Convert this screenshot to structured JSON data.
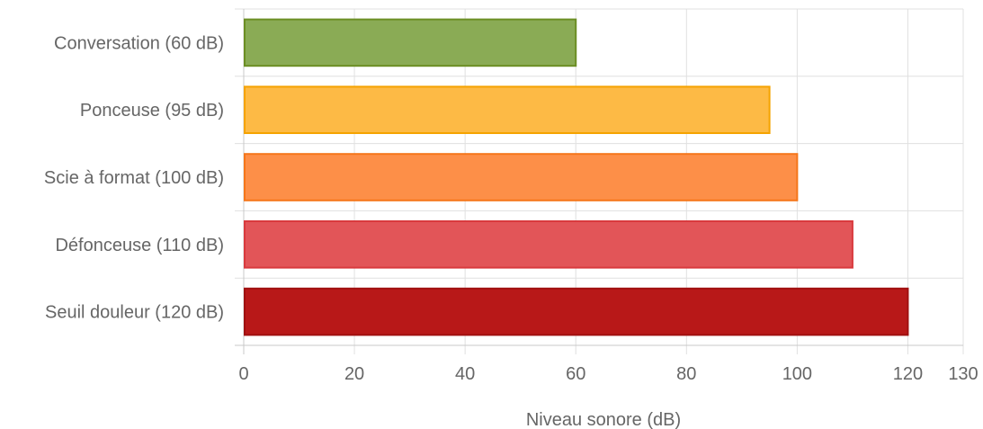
{
  "chart_data": {
    "type": "bar",
    "orientation": "horizontal",
    "categories": [
      "Conversation (60 dB)",
      "Ponceuse (95 dB)",
      "Scie à format (100 dB)",
      "Défonceuse (110 dB)",
      "Seuil douleur (120 dB)"
    ],
    "values": [
      60,
      95,
      100,
      110,
      120
    ],
    "colors": [
      {
        "fill": "#8aab55",
        "stroke": "#6b8e23"
      },
      {
        "fill": "#fdba45",
        "stroke": "#f5a300"
      },
      {
        "fill": "#fd8f48",
        "stroke": "#f5761a"
      },
      {
        "fill": "#e25558",
        "stroke": "#d93a3e"
      },
      {
        "fill": "#b81818",
        "stroke": "#a01010"
      }
    ],
    "xlabel": "Niveau sonore (dB)",
    "xlim": [
      0,
      130
    ],
    "xticks": [
      0,
      20,
      40,
      60,
      80,
      100,
      120,
      130
    ],
    "grid": true,
    "legend": "none"
  }
}
